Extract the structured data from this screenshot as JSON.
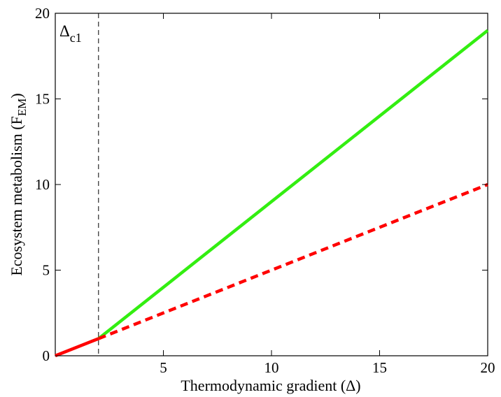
{
  "chart_data": {
    "type": "line",
    "xlabel": "Thermodynamic gradient (Δ)",
    "ylabel": {
      "main": "Ecosystem metabolism (F",
      "sub": "EM",
      "close": ")"
    },
    "xlim": [
      0,
      20
    ],
    "ylim": [
      0,
      20
    ],
    "xticks": [
      5,
      10,
      15,
      20
    ],
    "yticks": [
      0,
      5,
      10,
      15,
      20
    ],
    "grid": false,
    "annotation": {
      "main": "Δ",
      "sub": "c1",
      "x": 2
    },
    "series": [
      {
        "style": "solid",
        "color": "#ff0000",
        "x": [
          0,
          2
        ],
        "y": [
          0,
          1
        ]
      },
      {
        "style": "solid",
        "color": "#33ee11",
        "x": [
          2,
          20
        ],
        "y": [
          1,
          19
        ]
      },
      {
        "style": "dashed",
        "color": "#ff0000",
        "x": [
          2,
          20
        ],
        "y": [
          1,
          10
        ]
      }
    ]
  }
}
